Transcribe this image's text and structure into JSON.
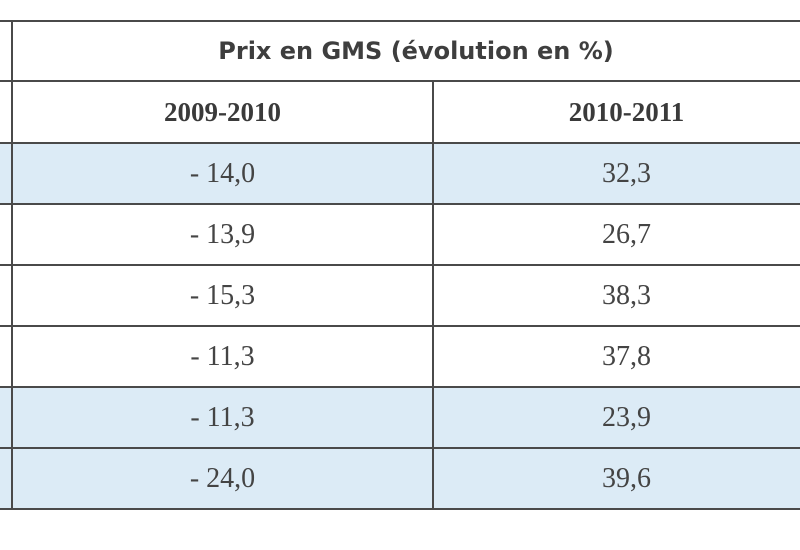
{
  "table": {
    "title": "Prix en GMS (évolution en %)",
    "columns": [
      "2009-2010",
      "2010-2011"
    ],
    "rows": [
      {
        "v1": "- 14,0",
        "v2": "32,3",
        "shaded": true
      },
      {
        "v1": "- 13,9",
        "v2": "26,7",
        "shaded": false
      },
      {
        "v1": "- 15,3",
        "v2": "38,3",
        "shaded": false
      },
      {
        "v1": "- 11,3",
        "v2": "37,8",
        "shaded": false
      },
      {
        "v1": "- 11,3",
        "v2": "23,9",
        "shaded": true
      },
      {
        "v1": "- 24,0",
        "v2": "39,6",
        "shaded": true
      }
    ],
    "colors": {
      "shaded": "#dcebf6",
      "border": "#4a4a4a",
      "text": "#3a3a3a"
    }
  }
}
